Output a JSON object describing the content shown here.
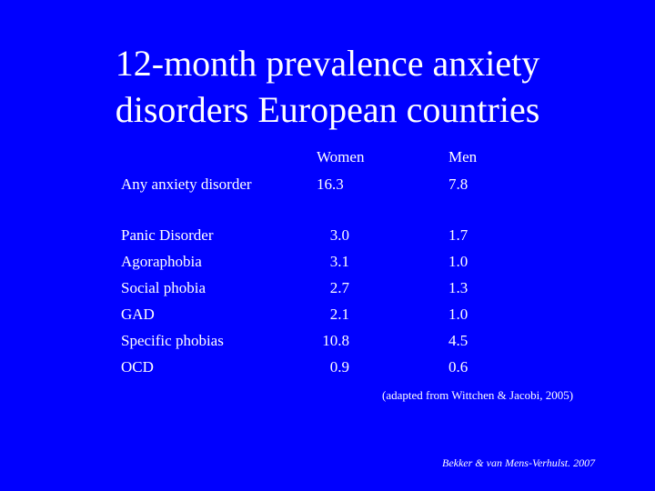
{
  "slide": {
    "title_line1": "12-month prevalence anxiety",
    "title_line2": "disorders European countries",
    "columns": {
      "women": "Women",
      "men": "Men"
    },
    "rows": [
      {
        "label": "Any anxiety disorder",
        "women": "16.3",
        "men": "7.8"
      },
      {
        "label": "Panic Disorder",
        "women": "3.0",
        "men": "1.7"
      },
      {
        "label": "Agoraphobia",
        "women": "3.1",
        "men": "1.0"
      },
      {
        "label": "Social phobia",
        "women": "2.7",
        "men": "1.3"
      },
      {
        "label": "GAD",
        "women": "2.1",
        "men": "1.0"
      },
      {
        "label": "Specific phobias",
        "women": "10.8",
        "men": "4.5"
      },
      {
        "label": "OCD",
        "women": "0.9",
        "men": "0.6"
      }
    ],
    "source_note": "(adapted from Wittchen & Jacobi, 2005)",
    "credit": "Bekker & van Mens-Verhulst. 2007"
  },
  "colors": {
    "background": "#0000ff",
    "text": "#ffffff"
  }
}
